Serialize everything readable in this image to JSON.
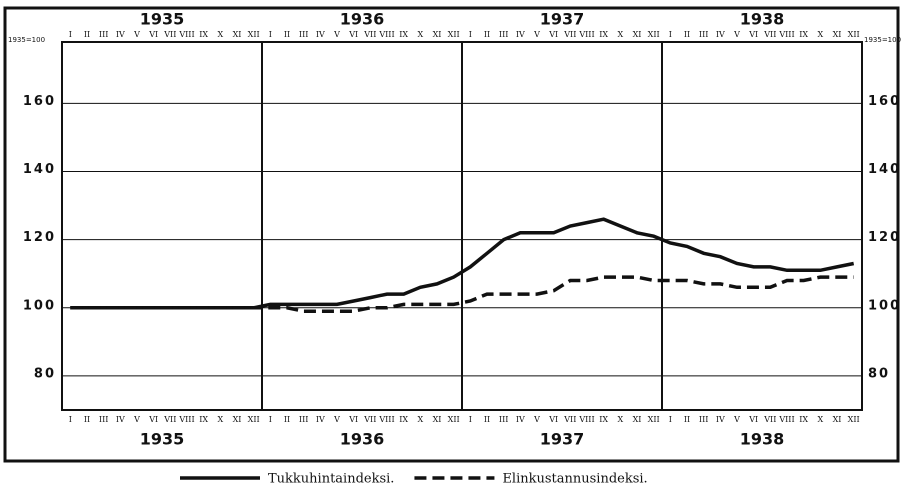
{
  "chart_data": {
    "type": "line",
    "axis_label": "1935=100",
    "years": [
      "1935",
      "1936",
      "1937",
      "1938"
    ],
    "months": [
      "I",
      "II",
      "III",
      "IV",
      "V",
      "VI",
      "VII",
      "VIII",
      "IX",
      "X",
      "XI",
      "XII"
    ],
    "series": [
      {
        "name": "Tukkuhintaindeksi.",
        "color": "#111111",
        "dash": false,
        "values": [
          100,
          100,
          100,
          100,
          100,
          100,
          100,
          100,
          100,
          100,
          100,
          100,
          101,
          101,
          101,
          101,
          101,
          102,
          103,
          104,
          104,
          106,
          107,
          109,
          112,
          116,
          120,
          122,
          122,
          122,
          124,
          125,
          126,
          124,
          122,
          121,
          119,
          118,
          116,
          115,
          113,
          112,
          112,
          111,
          111,
          111,
          112,
          113
        ]
      },
      {
        "name": "Elinkustannusindeksi.",
        "color": "#111111",
        "dash": true,
        "values": [
          100,
          100,
          100,
          100,
          100,
          100,
          100,
          100,
          100,
          100,
          100,
          100,
          100,
          100,
          99,
          99,
          99,
          99,
          100,
          100,
          101,
          101,
          101,
          101,
          102,
          104,
          104,
          104,
          104,
          105,
          108,
          108,
          109,
          109,
          109,
          108,
          108,
          108,
          107,
          107,
          106,
          106,
          106,
          108,
          108,
          109,
          109,
          109
        ]
      }
    ],
    "ylim": [
      70,
      178
    ],
    "yticks": [
      80,
      100,
      120,
      140,
      160
    ],
    "grid": true
  }
}
